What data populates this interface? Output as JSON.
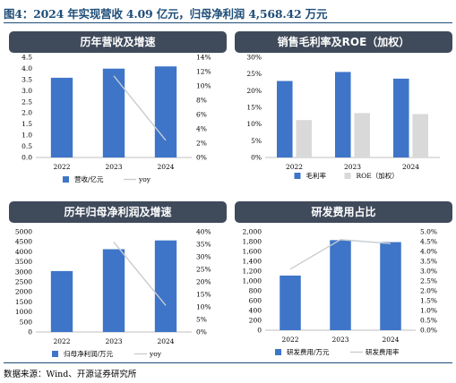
{
  "figure_title": "图4：2024 年实现营收 4.09 亿元，归母净利润 4,568.42 万元",
  "source_note": "数据来源：Wind、开源证券研究所",
  "chart_data": [
    {
      "type": "bar",
      "title": "历年营收及增速",
      "categories": [
        "2022",
        "2023",
        "2024"
      ],
      "series": [
        {
          "name": "营收/亿元",
          "kind": "bar",
          "axis": "left",
          "values": [
            3.58,
            3.99,
            4.09
          ],
          "color": "#3E75C8"
        },
        {
          "name": "yoy",
          "kind": "line",
          "axis": "right",
          "values": [
            null,
            11.4,
            2.4
          ],
          "color": "#C8CCD2"
        }
      ],
      "y_left": {
        "min": 0,
        "max": 4.5,
        "ticks": [
          "0.0",
          "0.5",
          "1.0",
          "1.5",
          "2.0",
          "2.5",
          "3.0",
          "3.5",
          "4.0",
          "4.5"
        ]
      },
      "y_right": {
        "min": 0,
        "max": 14,
        "ticks": [
          "0%",
          "2%",
          "4%",
          "6%",
          "8%",
          "10%",
          "12%",
          "14%"
        ]
      },
      "legend": "bottom"
    },
    {
      "type": "bar",
      "title": "销售毛利率及ROE（加权）",
      "categories": [
        "2022",
        "2023",
        "2024"
      ],
      "series": [
        {
          "name": "毛利率",
          "kind": "bar",
          "axis": "left",
          "values": [
            22.9,
            25.6,
            23.6
          ],
          "color": "#3E75C8"
        },
        {
          "name": "ROE（加权）",
          "kind": "bar",
          "axis": "left",
          "values": [
            11.2,
            13.3,
            13.0
          ],
          "color": "#D9D9D9"
        }
      ],
      "y_left": {
        "min": 0,
        "max": 30,
        "ticks": [
          "0%",
          "5%",
          "10%",
          "15%",
          "20%",
          "25%",
          "30%"
        ]
      },
      "legend": "bottom"
    },
    {
      "type": "bar",
      "title": "历年归母净利润及增速",
      "categories": [
        "2022",
        "2023",
        "2024"
      ],
      "series": [
        {
          "name": "归母净利润/万元",
          "kind": "bar",
          "axis": "left",
          "values": [
            3040,
            4130,
            4568.42
          ],
          "color": "#3E75C8"
        },
        {
          "name": "yoy",
          "kind": "line",
          "axis": "right",
          "values": [
            null,
            35.9,
            10.6
          ],
          "color": "#C8CCD2"
        }
      ],
      "y_left": {
        "min": 0,
        "max": 5000,
        "ticks": [
          "0",
          "500",
          "1000",
          "1500",
          "2000",
          "2500",
          "3000",
          "3500",
          "4000",
          "4500",
          "5000"
        ]
      },
      "y_right": {
        "min": 0,
        "max": 40,
        "ticks": [
          "0%",
          "5%",
          "10%",
          "15%",
          "20%",
          "25%",
          "30%",
          "35%",
          "40%"
        ]
      },
      "legend": "bottom"
    },
    {
      "type": "bar",
      "title": "研发费用占比",
      "categories": [
        "2022",
        "2023",
        "2024"
      ],
      "series": [
        {
          "name": "研发费用/万元",
          "kind": "bar",
          "axis": "left",
          "values": [
            1110,
            1830,
            1790
          ],
          "color": "#3E75C8"
        },
        {
          "name": "研发费用率",
          "kind": "line",
          "axis": "right",
          "values": [
            3.1,
            4.6,
            4.4
          ],
          "color": "#C8CCD2"
        }
      ],
      "y_left": {
        "min": 0,
        "max": 2000,
        "ticks": [
          "0",
          "200",
          "400",
          "600",
          "800",
          "1,000",
          "1,200",
          "1,400",
          "1,600",
          "1,800",
          "2,000"
        ]
      },
      "y_right": {
        "min": 0,
        "max": 5,
        "ticks": [
          "0.0%",
          "0.5%",
          "1.0%",
          "1.5%",
          "2.0%",
          "2.5%",
          "3.0%",
          "3.5%",
          "4.0%",
          "4.5%",
          "5.0%"
        ]
      },
      "legend": "bottom"
    }
  ]
}
